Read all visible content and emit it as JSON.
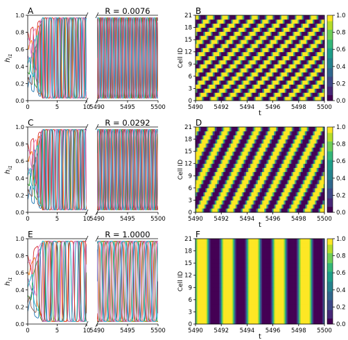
{
  "figure": {
    "colorbar_ticks": [
      "0.0",
      "0.2",
      "0.4",
      "0.6",
      "0.8",
      "1.0"
    ],
    "colormap": [
      "#440154",
      "#482878",
      "#3e4989",
      "#31688e",
      "#26828e",
      "#1f9e89",
      "#35b779",
      "#6ece58",
      "#b5de2b",
      "#fde725"
    ],
    "line_colors": [
      "#1f77b4",
      "#ff7f0e",
      "#2ca02c",
      "#d62728",
      "#9467bd",
      "#8c564b",
      "#e377c2",
      "#17becf"
    ]
  },
  "chart_data": [
    {
      "type": "line",
      "panel": "A",
      "ylabel": "h_{i1}",
      "left_axis": {
        "xlim": [
          0,
          10
        ],
        "xticks": [
          "0",
          "5",
          "10"
        ]
      },
      "right_axis": {
        "xlim": [
          5490,
          5500
        ],
        "xticks": [
          "5490",
          "5495",
          "5500"
        ]
      },
      "ylim": [
        0,
        1
      ],
      "yticks": [
        "0.0",
        "0.2",
        "0.4",
        "0.6",
        "0.8",
        "1.0"
      ],
      "period": 1.15,
      "series_count": 8,
      "phases": [
        0.0,
        0.12,
        0.27,
        0.38,
        0.5,
        0.63,
        0.75,
        0.88
      ]
    },
    {
      "type": "heatmap",
      "panel": "B",
      "title": "R = 0.0076",
      "xlabel": "t",
      "ylabel": "Cell ID",
      "xlim": [
        5490,
        5500
      ],
      "ylim": [
        0,
        21
      ],
      "xticks": [
        "5490",
        "5492",
        "5494",
        "5496",
        "5498",
        "5500"
      ],
      "yticks": [
        "0",
        "3",
        "6",
        "9",
        "12",
        "15",
        "18",
        "21"
      ],
      "period": 1.15,
      "phase_shift_per_cell": 0.33
    },
    {
      "type": "line",
      "panel": "C",
      "ylabel": "h_{i1}",
      "left_axis": {
        "xlim": [
          0,
          10
        ],
        "xticks": [
          "0",
          "5",
          "10"
        ]
      },
      "right_axis": {
        "xlim": [
          5490,
          5500
        ],
        "xticks": [
          "5490",
          "5495",
          "5500"
        ]
      },
      "ylim": [
        0,
        1
      ],
      "yticks": [
        "0.0",
        "0.2",
        "0.4",
        "0.6",
        "0.8",
        "1.0"
      ],
      "period": 1.2,
      "series_count": 8,
      "phases": [
        0.0,
        0.14,
        0.25,
        0.4,
        0.52,
        0.61,
        0.77,
        0.9
      ]
    },
    {
      "type": "heatmap",
      "panel": "D",
      "title": "R = 0.0292",
      "xlabel": "t",
      "ylabel": "Cell ID",
      "xlim": [
        5490,
        5500
      ],
      "ylim": [
        0,
        21
      ],
      "xticks": [
        "5490",
        "5492",
        "5494",
        "5496",
        "5498",
        "5500"
      ],
      "yticks": [
        "0",
        "3",
        "6",
        "9",
        "12",
        "15",
        "18",
        "21"
      ],
      "period": 1.2,
      "phase_shift_per_cell": 0.166
    },
    {
      "type": "line",
      "panel": "E",
      "ylabel": "h_{i1}",
      "left_axis": {
        "xlim": [
          0,
          10
        ],
        "xticks": [
          "0",
          "5",
          "10"
        ]
      },
      "right_axis": {
        "xlim": [
          5490,
          5500
        ],
        "xticks": [
          "5490",
          "5495",
          "5500"
        ]
      },
      "ylim": [
        0,
        1
      ],
      "yticks": [
        "0.0",
        "0.2",
        "0.4",
        "0.6",
        "0.8",
        "1.0"
      ],
      "period": 2.0,
      "series_count": 8,
      "phases": [
        0.0,
        0.15,
        0.3,
        0.45,
        0.55,
        0.68,
        0.8,
        0.92
      ]
    },
    {
      "type": "heatmap",
      "panel": "F",
      "title": "R = 1.0000",
      "xlabel": "t",
      "ylabel": "Cell ID",
      "xlim": [
        5490,
        5500
      ],
      "ylim": [
        0,
        21
      ],
      "xticks": [
        "5490",
        "5492",
        "5494",
        "5496",
        "5498",
        "5500"
      ],
      "yticks": [
        "0",
        "3",
        "6",
        "9",
        "12",
        "15",
        "18",
        "21"
      ],
      "period": 2.0,
      "phase_shift_per_cell": 0.0
    }
  ]
}
